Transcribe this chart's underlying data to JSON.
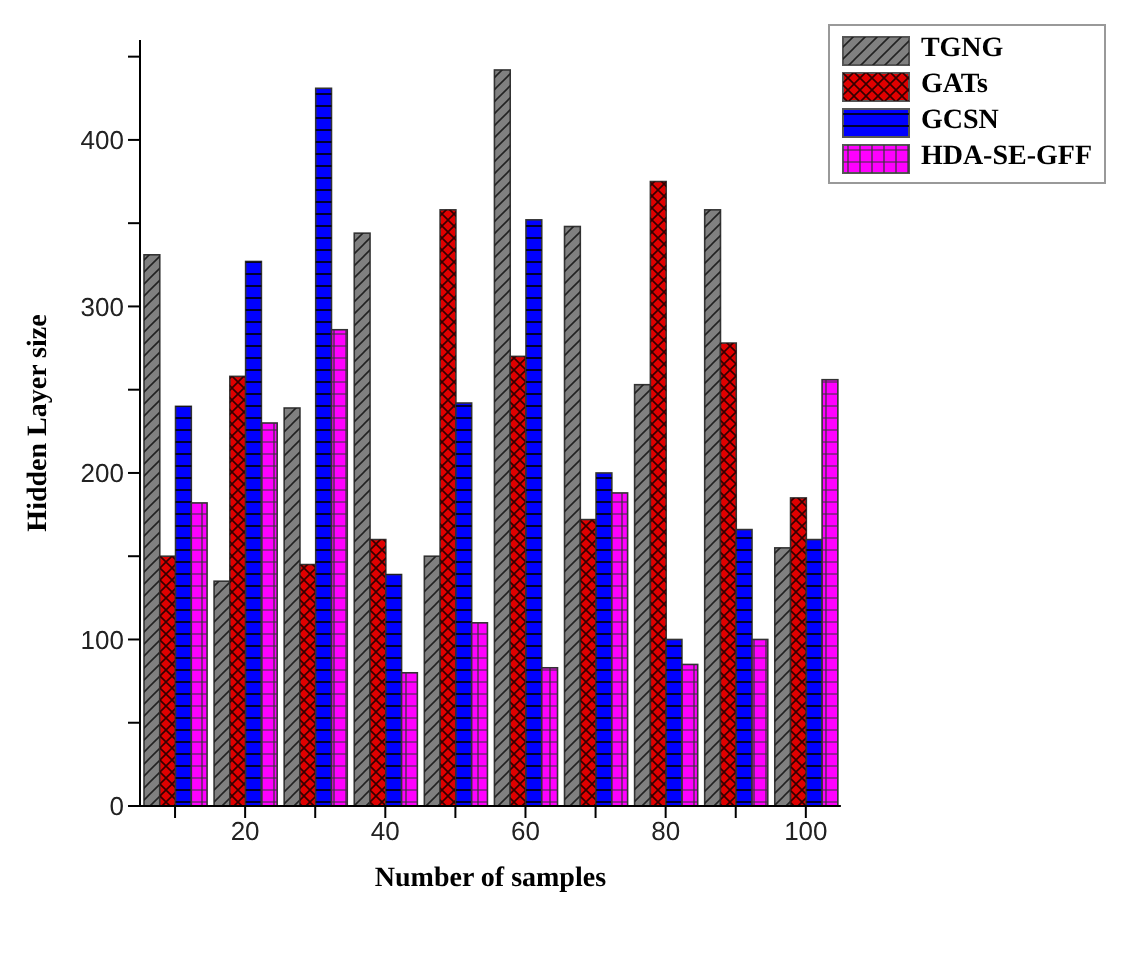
{
  "chart_data": {
    "type": "bar",
    "xlabel": "Number of samples",
    "ylabel": "Hidden Layer size",
    "x": [
      10,
      20,
      30,
      40,
      50,
      60,
      70,
      80,
      90,
      100
    ],
    "series": [
      {
        "name": "TGNG",
        "color": "#808080",
        "values": [
          331,
          135,
          239,
          344,
          150,
          442,
          348,
          253,
          358,
          155
        ]
      },
      {
        "name": "GATs",
        "color": "#e00000",
        "values": [
          150,
          258,
          145,
          160,
          358,
          270,
          172,
          375,
          278,
          185
        ]
      },
      {
        "name": "GCSN",
        "color": "#0000ff",
        "values": [
          240,
          327,
          431,
          139,
          242,
          352,
          200,
          100,
          166,
          160
        ]
      },
      {
        "name": "HDA-SE-GFF",
        "color": "#ff00ff",
        "values": [
          182,
          230,
          286,
          80,
          110,
          83,
          188,
          85,
          100,
          256
        ]
      }
    ],
    "xlim": [
      5,
      105
    ],
    "xticks": [
      {
        "value": 10,
        "label": null
      },
      20,
      {
        "value": 30,
        "label": null
      },
      40,
      {
        "value": 50,
        "label": null
      },
      60,
      {
        "value": 70,
        "label": null
      },
      80,
      {
        "value": 90,
        "label": null
      },
      100
    ],
    "ylim": [
      0,
      460
    ],
    "yticks": [
      0,
      {
        "value": 50,
        "label": null
      },
      100,
      {
        "value": 150,
        "label": null
      },
      200,
      {
        "value": 250,
        "label": null
      },
      300,
      {
        "value": 350,
        "label": null
      },
      400,
      {
        "value": 450,
        "label": null
      }
    ],
    "grid": false,
    "legend": "top right"
  }
}
